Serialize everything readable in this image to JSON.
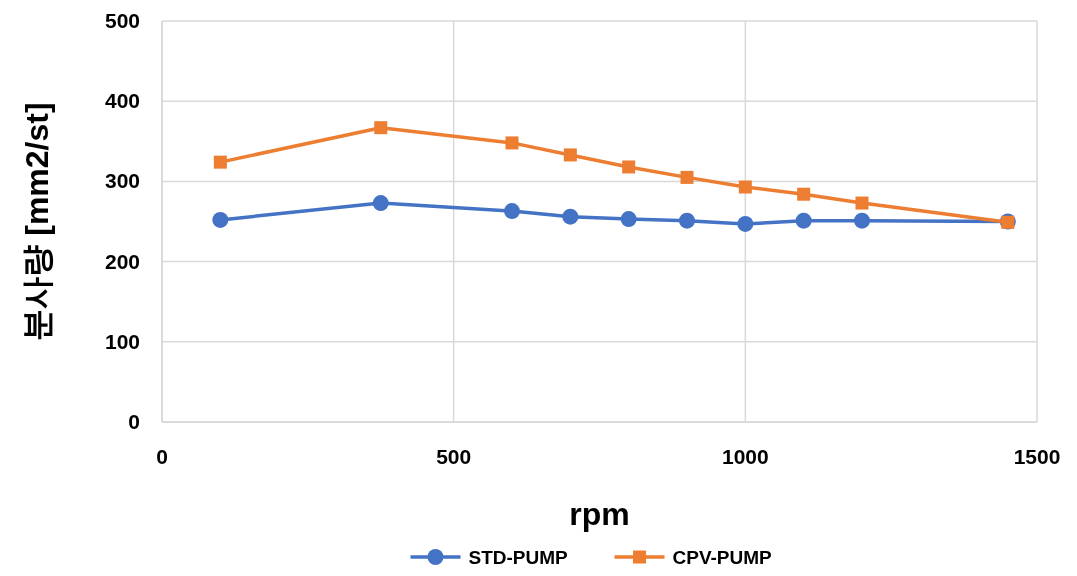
{
  "chart_data": {
    "type": "line",
    "xlabel": "rpm",
    "ylabel": "분사량 [mm2/st]",
    "xlim": [
      0,
      1500
    ],
    "xticks": [
      0,
      500,
      1000,
      1500
    ],
    "ylim": [
      0,
      500
    ],
    "yticks": [
      0,
      100,
      200,
      300,
      400,
      500
    ],
    "grid": true,
    "legend": "bottom",
    "line_style": "solid",
    "series": [
      {
        "name": "STD-PUMP",
        "color": "#4472c4",
        "marker": "circle",
        "x": [
          100,
          375,
          600,
          700,
          800,
          900,
          1000,
          1100,
          1200,
          1450
        ],
        "values": [
          252,
          273,
          263,
          256,
          253,
          251,
          247,
          251,
          251,
          250
        ]
      },
      {
        "name": "CPV-PUMP",
        "color": "#ed7d31",
        "marker": "square",
        "x": [
          100,
          375,
          600,
          700,
          800,
          900,
          1000,
          1100,
          1200,
          1450
        ],
        "values": [
          324,
          367,
          348,
          333,
          318,
          305,
          293,
          284,
          273,
          249
        ]
      }
    ]
  }
}
